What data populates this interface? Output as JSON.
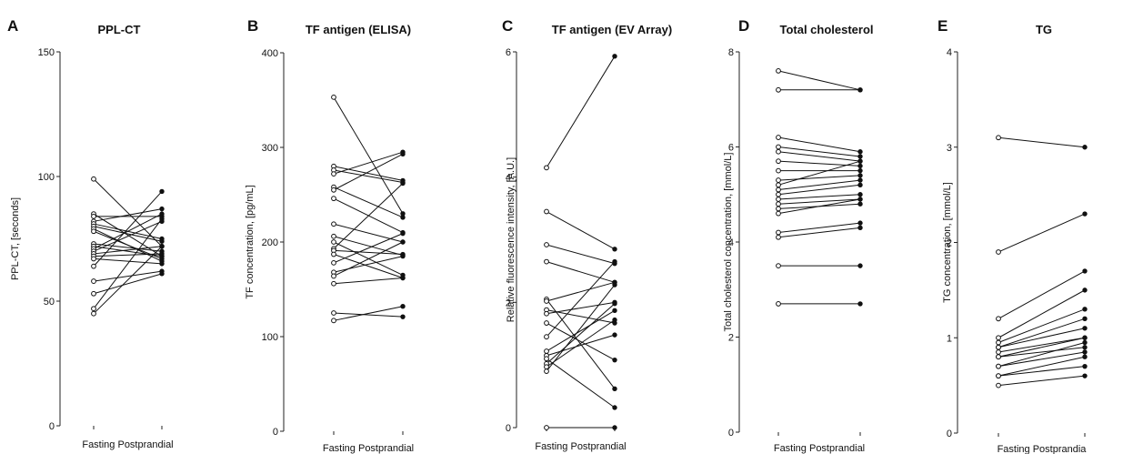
{
  "chart_data": [
    {
      "type": "line",
      "letter": "A",
      "title": "PPL-CT",
      "ylabel": "PPL-CT, [seconds]",
      "categories": [
        "Fasting",
        "Postprandial"
      ],
      "ylim": [
        0,
        150
      ],
      "yticks": [
        0,
        50,
        100,
        150
      ],
      "pairs": [
        [
          99,
          72
        ],
        [
          85,
          68
        ],
        [
          84,
          84
        ],
        [
          82,
          87
        ],
        [
          81,
          75
        ],
        [
          80,
          74
        ],
        [
          79,
          66
        ],
        [
          78,
          67
        ],
        [
          73,
          70
        ],
        [
          72,
          68
        ],
        [
          71,
          85
        ],
        [
          70,
          82
        ],
        [
          69,
          72
        ],
        [
          68,
          69
        ],
        [
          67,
          65
        ],
        [
          64,
          94
        ],
        [
          58,
          62
        ],
        [
          53,
          61
        ],
        [
          47,
          83
        ],
        [
          45,
          72
        ]
      ]
    },
    {
      "type": "line",
      "letter": "B",
      "title": "TF antigen (ELISA)",
      "ylabel": "TF concentration, [pg/mL]",
      "categories": [
        "Fasting",
        "Postprandial"
      ],
      "ylim": [
        0,
        400
      ],
      "yticks": [
        0,
        100,
        200,
        300,
        400
      ],
      "pairs": [
        [
          353,
          230
        ],
        [
          280,
          265
        ],
        [
          276,
          263
        ],
        [
          272,
          295
        ],
        [
          258,
          226
        ],
        [
          255,
          293
        ],
        [
          246,
          210
        ],
        [
          219,
          200
        ],
        [
          206,
          186
        ],
        [
          200,
          165
        ],
        [
          193,
          262
        ],
        [
          191,
          187
        ],
        [
          187,
          162
        ],
        [
          178,
          209
        ],
        [
          168,
          185
        ],
        [
          164,
          200
        ],
        [
          156,
          162
        ],
        [
          125,
          121
        ],
        [
          117,
          132
        ]
      ]
    },
    {
      "type": "line",
      "letter": "C",
      "title": "TF antigen (EV Array)",
      "ylabel": "Relative fluorescence intensity, [A.U.]",
      "categories": [
        "Fasting",
        "Postprandial"
      ],
      "ylim": [
        0,
        6
      ],
      "yticks": [
        0,
        2,
        4,
        6
      ],
      "pairs": [
        [
          4.15,
          5.93
        ],
        [
          3.45,
          2.85
        ],
        [
          2.92,
          2.62
        ],
        [
          2.65,
          2.32
        ],
        [
          2.05,
          0.62
        ],
        [
          2.02,
          2.32
        ],
        [
          1.88,
          1.67
        ],
        [
          1.82,
          2.0
        ],
        [
          1.67,
          1.08
        ],
        [
          1.45,
          2.65
        ],
        [
          1.22,
          1.87
        ],
        [
          1.15,
          1.48
        ],
        [
          1.1,
          0.32
        ],
        [
          1.02,
          1.98
        ],
        [
          0.97,
          1.72
        ],
        [
          0.9,
          2.28
        ],
        [
          0.0,
          0.0
        ]
      ]
    },
    {
      "type": "line",
      "letter": "D",
      "title": "Total cholesterol",
      "ylabel": "Total cholesterol concentration, [mmol/L]",
      "categories": [
        "Fasting",
        "Postprandial"
      ],
      "ylim": [
        0,
        8
      ],
      "yticks": [
        0,
        2,
        4,
        6,
        8
      ],
      "pairs": [
        [
          7.6,
          7.2
        ],
        [
          7.2,
          7.2
        ],
        [
          6.2,
          5.9
        ],
        [
          6.0,
          5.8
        ],
        [
          5.9,
          5.7
        ],
        [
          5.7,
          5.6
        ],
        [
          5.5,
          5.5
        ],
        [
          5.3,
          5.4
        ],
        [
          5.2,
          5.7
        ],
        [
          5.1,
          5.3
        ],
        [
          5.0,
          5.2
        ],
        [
          4.9,
          5.0
        ],
        [
          4.8,
          4.9
        ],
        [
          4.7,
          4.8
        ],
        [
          4.6,
          4.9
        ],
        [
          4.2,
          4.4
        ],
        [
          4.1,
          4.3
        ],
        [
          3.5,
          3.5
        ],
        [
          2.7,
          2.7
        ]
      ]
    },
    {
      "type": "line",
      "letter": "E",
      "title": "TG",
      "ylabel": "TG concentration, [mmol/L]",
      "categories": [
        "Fasting",
        "Postprandia"
      ],
      "ylim": [
        0,
        4
      ],
      "yticks": [
        0,
        1,
        2,
        3,
        4
      ],
      "pairs": [
        [
          3.1,
          3.0
        ],
        [
          1.9,
          2.3
        ],
        [
          1.2,
          1.7
        ],
        [
          1.0,
          1.5
        ],
        [
          0.95,
          1.3
        ],
        [
          0.9,
          1.2
        ],
        [
          0.9,
          1.1
        ],
        [
          0.85,
          1.0
        ],
        [
          0.8,
          1.0
        ],
        [
          0.8,
          0.9
        ],
        [
          0.7,
          0.95
        ],
        [
          0.7,
          0.85
        ],
        [
          0.6,
          0.8
        ],
        [
          0.6,
          0.7
        ],
        [
          0.5,
          0.6
        ]
      ]
    }
  ]
}
